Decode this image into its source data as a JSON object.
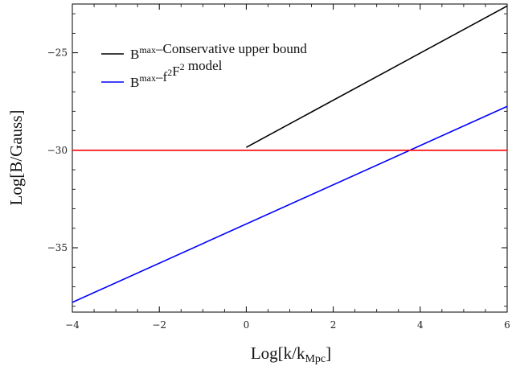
{
  "chart_data": {
    "type": "line",
    "xlabel": "Log[k/k",
    "xlabel_sub": "Mpc",
    "xlabel_close": "]",
    "ylabel": "Log[B/Gauss]",
    "xlim": [
      -4,
      6
    ],
    "ylim": [
      -38.3,
      -22.5
    ],
    "x_ticks": [
      -4,
      -2,
      0,
      2,
      4,
      6
    ],
    "y_ticks": [
      -25,
      -30,
      -35
    ],
    "x_tick_labels": [
      "−4",
      "−2",
      "0",
      "2",
      "4",
      "6"
    ],
    "y_tick_labels": [
      "−25",
      "−30",
      "−35"
    ],
    "grid": false,
    "legend_position": "top-left",
    "series": [
      {
        "name": "B^max – Conservative upper bound",
        "color": "#000000",
        "x": [
          0,
          6
        ],
        "y": [
          -29.85,
          -22.6
        ]
      },
      {
        "name": "B^max – f^2 F^2 model",
        "color": "#0000ff",
        "x": [
          -4,
          6
        ],
        "y": [
          -37.8,
          -27.75
        ]
      },
      {
        "color": "#ff0000",
        "x": [
          -4,
          6
        ],
        "y": [
          -30,
          -30
        ]
      }
    ],
    "legend": [
      {
        "base": "B",
        "sup": "max",
        "rest": "–Conservative upper bound",
        "color": "#000000"
      },
      {
        "base": "B",
        "sup": "max",
        "rest": "–f",
        "sup2": "2",
        "rest2": "F",
        "sup3": "2",
        "rest3": " model",
        "color": "#0000ff"
      }
    ]
  }
}
